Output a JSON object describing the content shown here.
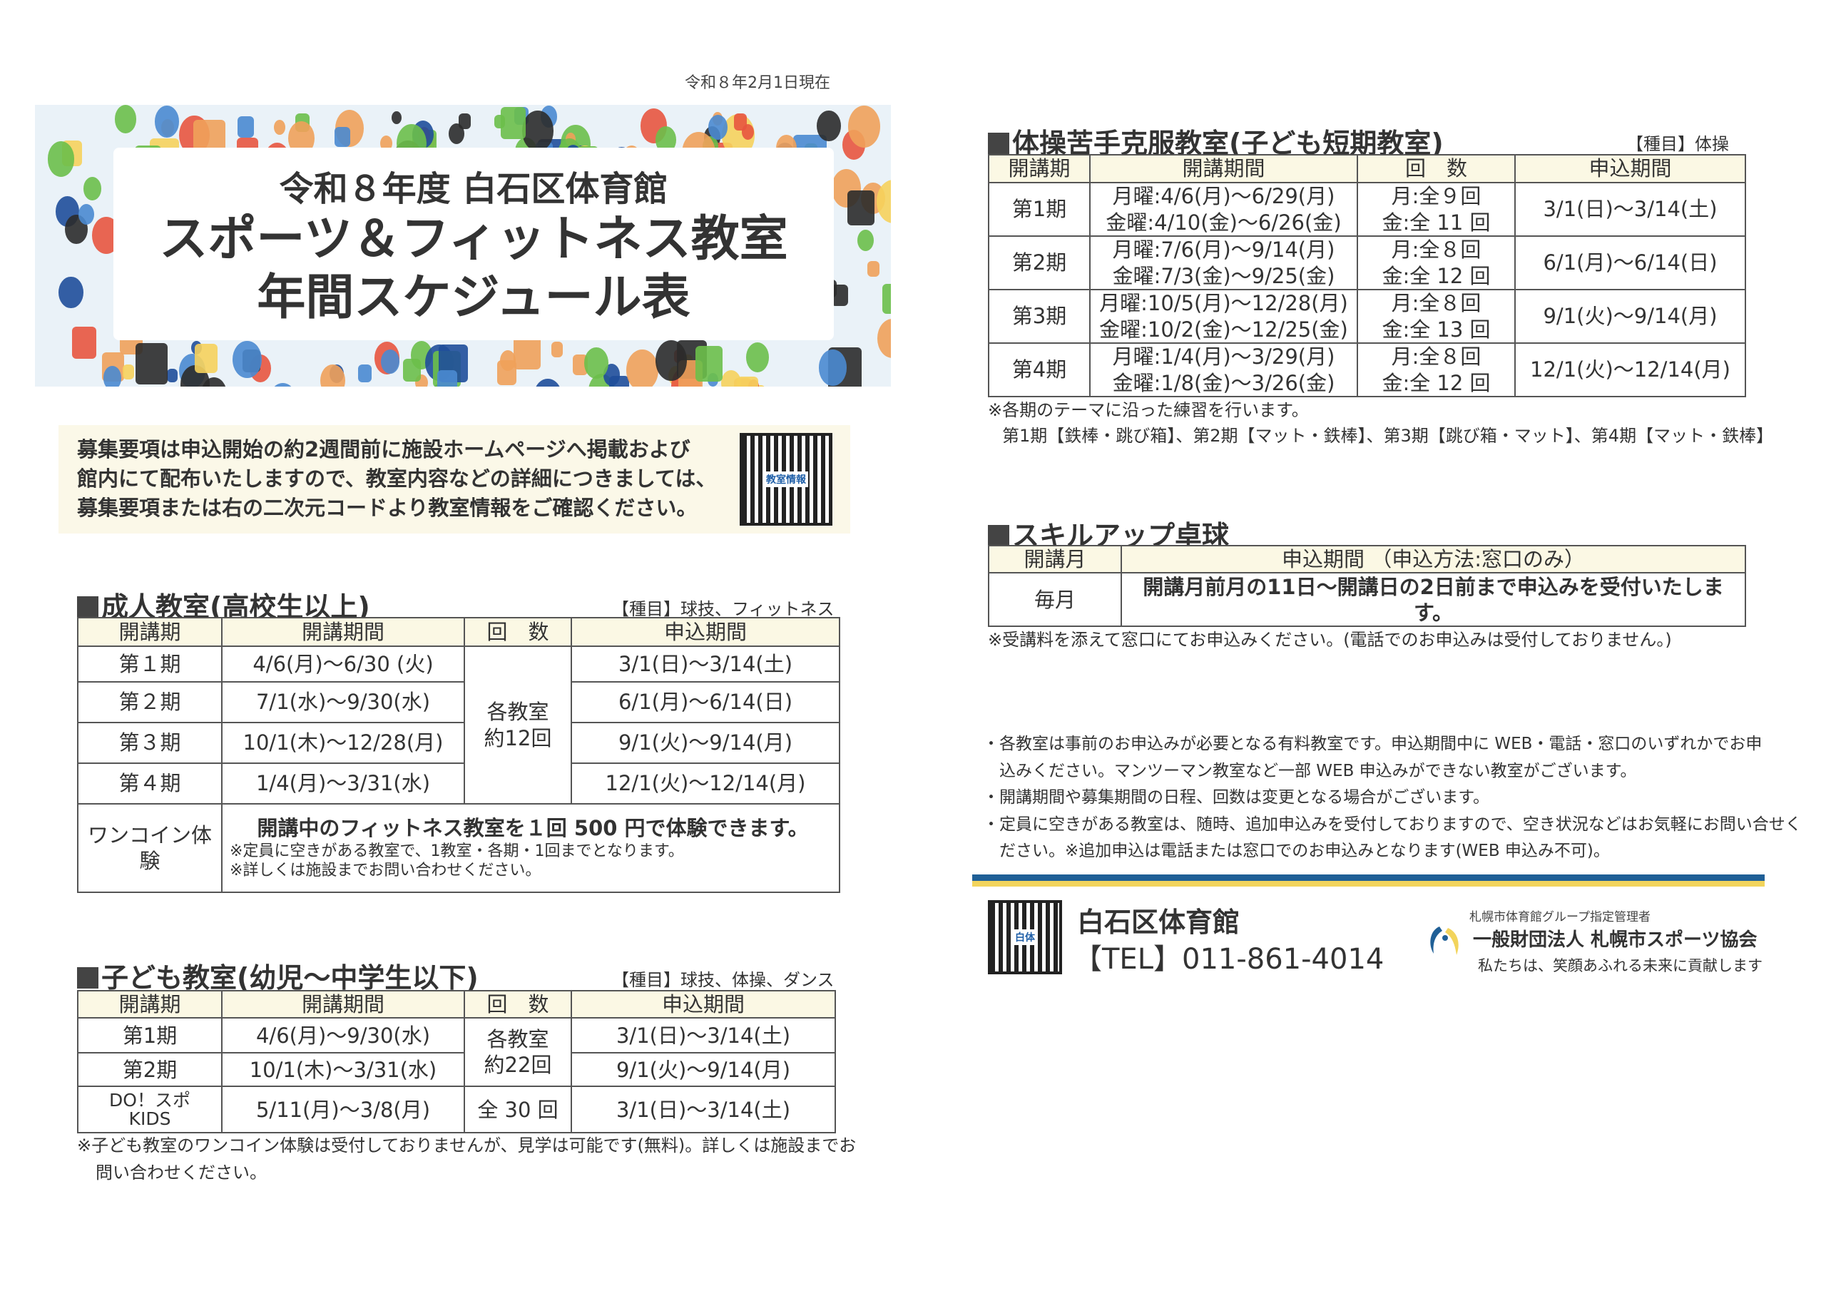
{
  "as_of": "令和８年2月1日現在",
  "banner": {
    "line1": "令和８年度  白石区体育館",
    "line2": "スポーツ＆フィットネス教室",
    "line3": "年間スケジュール表"
  },
  "info": {
    "lines": [
      "募集要項は申込開始の約2週間前に施設ホームページへ掲載および",
      "館内にて配布いたしますので、教室内容などの詳細につきましては、",
      "募集要項または右の二次元コードより教室情報をご確認ください。"
    ],
    "qr_label": "教室情報"
  },
  "adult": {
    "heading": "成人教室(高校生以上)",
    "tag": "【種目】球技、フィットネス",
    "headers": [
      "開講期",
      "開講期間",
      "回　数",
      "申込期間"
    ],
    "count": "各教室\n約12回",
    "rows": [
      {
        "term": "第１期",
        "period": "4/6(月)～6/30 (火)",
        "apply": "3/1(日)～3/14(土)"
      },
      {
        "term": "第２期",
        "period": "7/1(水)～9/30(水)",
        "apply": "6/1(月)～6/14(日)"
      },
      {
        "term": "第３期",
        "period": "10/1(木)～12/28(月)",
        "apply": "9/1(火)～9/14(月)"
      },
      {
        "term": "第４期",
        "period": "1/4(月)～3/31(水)",
        "apply": "12/1(火)～12/14(月)"
      }
    ],
    "onecoin": {
      "label": "ワンコイン体験",
      "main": "開講中のフィットネス教室を１回 500 円で体験できます。",
      "note1": "※定員に空きがある教室で、1教室・各期・1回までとなります。",
      "note2": "※詳しくは施設までお問い合わせください。"
    }
  },
  "kids": {
    "heading": "子ども教室(幼児～中学生以下)",
    "tag": "【種目】球技、体操、ダンス",
    "headers": [
      "開講期",
      "開講期間",
      "回　数",
      "申込期間"
    ],
    "count": "各教室\n約22回",
    "rows": [
      {
        "term": "第1期",
        "period": "4/6(月)～9/30(水)",
        "apply": "3/1(日)～3/14(土)"
      },
      {
        "term": "第2期",
        "period": "10/1(木)～3/31(水)",
        "apply": "9/1(火)～9/14(月)"
      },
      {
        "term": "DO！スポ\nKIDS",
        "period": "5/11(月)～3/8(月)",
        "count": "全 30 回",
        "apply": "3/1(日)～3/14(土)"
      }
    ],
    "note1": "※子ども教室のワンコイン体験は受付しておりませんが、見学は可能です(無料)。詳しくは施設までお",
    "note2": "問い合わせください。"
  },
  "gym": {
    "heading": "体操苦手克服教室(子ども短期教室)",
    "tag": "【種目】体操",
    "headers": [
      "開講期",
      "開講期間",
      "回　数",
      "申込期間"
    ],
    "rows": [
      {
        "term": "第1期",
        "mon": "月曜:4/6(月)～6/29(月)",
        "fri": "金曜:4/10(金)～6/26(金)",
        "cmon": "月:全９回",
        "cfri": "金:全 11 回",
        "apply": "3/1(日)～3/14(土)"
      },
      {
        "term": "第2期",
        "mon": "月曜:7/6(月)～9/14(月)",
        "fri": "金曜:7/3(金)～9/25(金)",
        "cmon": "月:全８回",
        "cfri": "金:全 12 回",
        "apply": "6/1(月)～6/14(日)"
      },
      {
        "term": "第3期",
        "mon": "月曜:10/5(月)～12/28(月)",
        "fri": "金曜:10/2(金)～12/25(金)",
        "cmon": "月:全８回",
        "cfri": "金:全 13 回",
        "apply": "9/1(火)～9/14(月)"
      },
      {
        "term": "第4期",
        "mon": "月曜:1/4(月)～3/29(月)",
        "fri": "金曜:1/8(金)～3/26(金)",
        "cmon": "月:全８回",
        "cfri": "金:全 12 回",
        "apply": "12/1(火)～12/14(月)"
      }
    ],
    "note1": "※各期のテーマに沿った練習を行います。",
    "note2": "第1期【鉄棒・跳び箱】、第2期【マット・鉄棒】、第3期【跳び箱・マット】、第4期【マット・鉄棒】"
  },
  "table_tennis": {
    "heading": "スキルアップ卓球",
    "headers": [
      "開講月",
      "申込期間 （申込方法:窓口のみ）"
    ],
    "month": "毎月",
    "text": "開講月前月の11日～開講日の2日前まで申込みを受付いたします。",
    "note": "※受講料を添えて窓口にてお申込みください。(電話でのお申込みは受付しておりません。)"
  },
  "bullets": [
    "・各教室は事前のお申込みが必要となる有料教室です。申込期間中に WEB・電話・窓口のいずれかでお申",
    "　込みください。マンツーマン教室など一部 WEB 申込みができない教室がございます。",
    "・開講期間や募集期間の日程、回数は変更となる場合がございます。",
    "・定員に空きがある教室は、随時、追加申込みを受付しておりますので、空き状況などはお気軽にお問い合せく",
    "　ださい。※追加申込は電話または窓口でのお申込みとなります(WEB 申込み不可)。"
  ],
  "footer": {
    "qr_label": "白体",
    "facility": "白石区体育館",
    "tel": "【TEL】011-861-4014",
    "manager": "札幌市体育館グループ指定管理者",
    "org": "一般財団法人 札幌市スポーツ協会",
    "tagline": "私たちは、笑顔あふれる未来に貢献します"
  },
  "colors": {
    "stripe_blue": "#1f5f96",
    "stripe_yellow": "#f2d45c",
    "header_bg": "#fbf8e4",
    "info_bg": "#fbf8e8"
  }
}
